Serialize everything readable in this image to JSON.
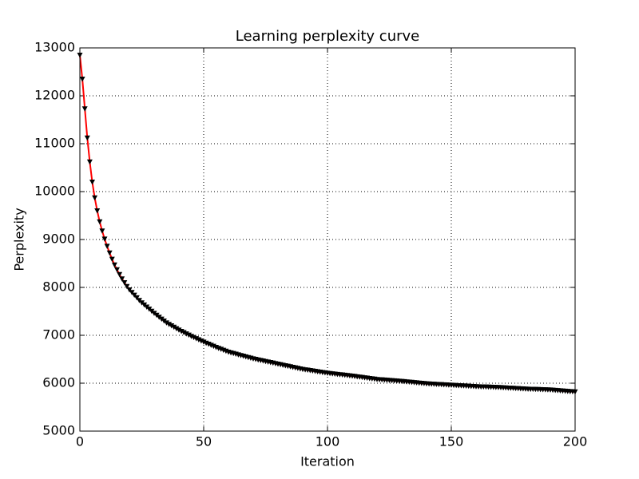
{
  "chart_data": {
    "type": "line",
    "title": "Learning perplexity curve",
    "x_label": "Iteration",
    "y_label": "Perplexity",
    "x": [
      0,
      1,
      2,
      3,
      4,
      5,
      6,
      7,
      8,
      9,
      10,
      11,
      12,
      13,
      14,
      15,
      16,
      17,
      18,
      19,
      20,
      21,
      22,
      23,
      24,
      25,
      26,
      27,
      28,
      29,
      30,
      31,
      32,
      33,
      34,
      35,
      36,
      37,
      38,
      39,
      40,
      41,
      42,
      43,
      44,
      45,
      46,
      47,
      48,
      49,
      50,
      51,
      52,
      53,
      54,
      55,
      56,
      57,
      58,
      59,
      60,
      61,
      62,
      63,
      64,
      65,
      66,
      67,
      68,
      69,
      70,
      71,
      72,
      73,
      74,
      75,
      76,
      77,
      78,
      79,
      80,
      81,
      82,
      83,
      84,
      85,
      86,
      87,
      88,
      89,
      90,
      91,
      92,
      93,
      94,
      95,
      96,
      97,
      98,
      99,
      100,
      101,
      102,
      103,
      104,
      105,
      106,
      107,
      108,
      109,
      110,
      111,
      112,
      113,
      114,
      115,
      116,
      117,
      118,
      119,
      120,
      121,
      122,
      123,
      124,
      125,
      126,
      127,
      128,
      129,
      130,
      131,
      132,
      133,
      134,
      135,
      136,
      137,
      138,
      139,
      140,
      141,
      142,
      143,
      144,
      145,
      146,
      147,
      148,
      149,
      150,
      151,
      152,
      153,
      154,
      155,
      156,
      157,
      158,
      159,
      160,
      161,
      162,
      163,
      164,
      165,
      166,
      167,
      168,
      169,
      170,
      171,
      172,
      173,
      174,
      175,
      176,
      177,
      178,
      179,
      180,
      181,
      182,
      183,
      184,
      185,
      186,
      187,
      188,
      189,
      190,
      191,
      192,
      193,
      194,
      195,
      196,
      197,
      198,
      199,
      200
    ],
    "series": [
      {
        "color": "#ff0000",
        "marker_color": "#000000",
        "values": [
          12850,
          12350,
          11730,
          11120,
          10620,
          10200,
          9870,
          9600,
          9370,
          9180,
          9010,
          8860,
          8720,
          8590,
          8470,
          8370,
          8270,
          8180,
          8100,
          8020,
          7950,
          7895,
          7840,
          7785,
          7730,
          7680,
          7636,
          7592,
          7548,
          7504,
          7460,
          7420,
          7380,
          7340,
          7300,
          7260,
          7230,
          7200,
          7170,
          7140,
          7110,
          7084,
          7058,
          7032,
          7006,
          6980,
          6956,
          6932,
          6908,
          6884,
          6860,
          6838,
          6816,
          6794,
          6772,
          6750,
          6730,
          6710,
          6690,
          6670,
          6650,
          6636,
          6622,
          6608,
          6594,
          6580,
          6566,
          6552,
          6538,
          6524,
          6510,
          6499,
          6488,
          6477,
          6466,
          6455,
          6444,
          6433,
          6422,
          6411,
          6400,
          6389,
          6378,
          6367,
          6356,
          6345,
          6334,
          6323,
          6312,
          6301,
          6290,
          6282,
          6274,
          6266,
          6258,
          6250,
          6242,
          6234,
          6226,
          6218,
          6210,
          6204,
          6198,
          6192,
          6186,
          6180,
          6174,
          6168,
          6162,
          6156,
          6150,
          6143,
          6136,
          6129,
          6122,
          6115,
          6108,
          6101,
          6094,
          6087,
          6080,
          6076,
          6072,
          6068,
          6064,
          6060,
          6056,
          6052,
          6048,
          6044,
          6040,
          6035,
          6030,
          6025,
          6020,
          6015,
          6010,
          6005,
          6000,
          5995,
          5990,
          5987,
          5984,
          5981,
          5978,
          5975,
          5972,
          5969,
          5966,
          5963,
          5960,
          5957,
          5954,
          5951,
          5948,
          5945,
          5942,
          5939,
          5936,
          5933,
          5930,
          5928,
          5926,
          5924,
          5922,
          5920,
          5918,
          5916,
          5914,
          5912,
          5910,
          5907,
          5904,
          5901,
          5898,
          5895,
          5892,
          5889,
          5886,
          5883,
          5880,
          5878,
          5876,
          5874,
          5872,
          5870,
          5868,
          5866,
          5864,
          5862,
          5860,
          5856,
          5852,
          5848,
          5844,
          5840,
          5836,
          5832,
          5828,
          5824,
          5820
        ]
      }
    ],
    "xlim": [
      0,
      200
    ],
    "xticks": [
      0,
      50,
      100,
      150,
      200
    ],
    "ylim": [
      5000,
      13000
    ],
    "yticks": [
      5000,
      6000,
      7000,
      8000,
      9000,
      10000,
      11000,
      12000,
      13000
    ],
    "grid": true
  }
}
